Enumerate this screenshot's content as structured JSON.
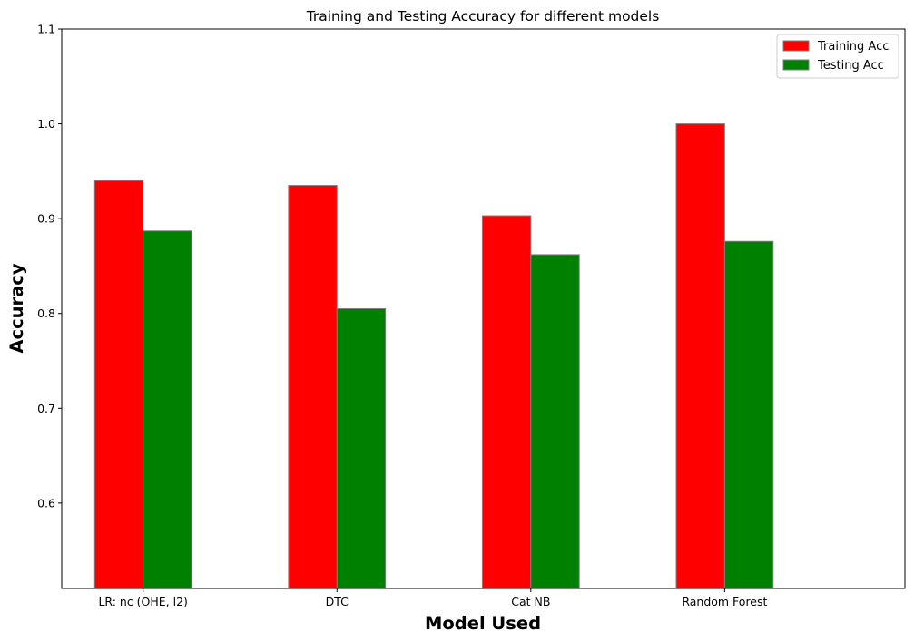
{
  "chart_data": {
    "type": "bar",
    "title": "Training and Testing Accuracy for different models",
    "xlabel": "Model Used",
    "ylabel": "Accuracy",
    "categories": [
      "LR: nc (OHE, l2)",
      "DTC",
      "Cat NB",
      "Random Forest"
    ],
    "series": [
      {
        "name": "Training Acc",
        "color": "#ff0000",
        "values": [
          0.94,
          0.935,
          0.903,
          1.0
        ]
      },
      {
        "name": "Testing Acc",
        "color": "#008000",
        "values": [
          0.887,
          0.805,
          0.862,
          0.876
        ]
      }
    ],
    "ylim": [
      0.51,
      1.1
    ],
    "yticks": [
      "0.6",
      "0.7",
      "0.8",
      "0.9",
      "1.0",
      "1.1"
    ],
    "grid": false,
    "legend": "top-right"
  }
}
